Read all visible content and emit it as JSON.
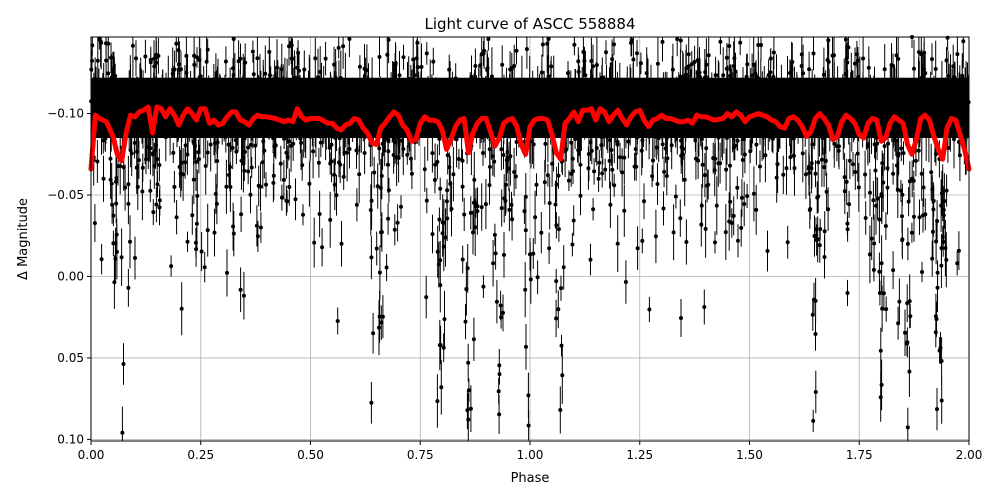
{
  "chart_data": {
    "type": "scatter",
    "title": "Light curve of ASCC 558884",
    "xlabel": "Phase",
    "ylabel": "Δ Magnitude",
    "xlim": [
      0.0,
      2.0
    ],
    "ylim": [
      0.101,
      -0.147
    ],
    "y_inverted": true,
    "grid": true,
    "x_ticks": [
      0.0,
      0.25,
      0.5,
      0.75,
      1.0,
      1.25,
      1.5,
      1.75,
      2.0
    ],
    "x_tick_labels": [
      "0.00",
      "0.25",
      "0.50",
      "0.75",
      "1.00",
      "1.25",
      "1.50",
      "1.75",
      "2.00"
    ],
    "y_ticks": [
      -0.1,
      -0.05,
      0.0,
      0.05,
      0.1
    ],
    "y_tick_labels": [
      "−0.10",
      "−0.05",
      "0.00",
      "0.05",
      "0.10"
    ],
    "series": [
      {
        "name": "observations",
        "kind": "errorbar-scatter",
        "color": "#000000",
        "description": "Dense phase-folded photometry with error bars; baseline around -0.10 to -0.12 mag with scatter to +0.10, recurring dips near phases 0.07, 0.65, 0.80, 0.86, 0.93, 1.00, 1.07, 1.65, 1.80, 1.86, 1.93",
        "baseline": -0.105,
        "dip_phases": [
          0.07,
          0.65,
          0.8,
          0.86,
          0.93,
          1.0,
          1.07,
          1.65,
          1.8,
          1.86,
          1.93
        ]
      },
      {
        "name": "model",
        "kind": "line",
        "color": "#ff0000",
        "x": [
          0.0,
          0.01,
          0.02,
          0.035,
          0.05,
          0.06,
          0.07,
          0.08,
          0.09,
          0.1,
          0.11,
          0.12,
          0.13,
          0.14,
          0.15,
          0.16,
          0.17,
          0.18,
          0.19,
          0.2,
          0.21,
          0.22,
          0.23,
          0.24,
          0.25,
          0.26,
          0.27,
          0.28,
          0.29,
          0.3,
          0.31,
          0.32,
          0.33,
          0.34,
          0.35,
          0.36,
          0.37,
          0.38,
          0.39,
          0.4,
          0.42,
          0.44,
          0.45,
          0.46,
          0.47,
          0.48,
          0.49,
          0.5,
          0.52,
          0.54,
          0.55,
          0.56,
          0.57,
          0.58,
          0.59,
          0.6,
          0.61,
          0.62,
          0.63,
          0.64,
          0.65,
          0.66,
          0.67,
          0.68,
          0.69,
          0.7,
          0.71,
          0.72,
          0.73,
          0.74,
          0.75,
          0.76,
          0.77,
          0.78,
          0.79,
          0.8,
          0.81,
          0.82,
          0.83,
          0.84,
          0.85,
          0.86,
          0.87,
          0.88,
          0.89,
          0.9,
          0.91,
          0.92,
          0.93,
          0.94,
          0.95,
          0.96,
          0.97,
          0.98,
          0.99,
          1.0,
          1.01,
          1.02,
          1.03,
          1.04,
          1.05,
          1.06,
          1.07,
          1.08,
          1.09,
          1.1,
          1.11,
          1.12,
          1.13,
          1.14,
          1.15,
          1.16,
          1.17,
          1.18,
          1.19,
          1.2,
          1.21,
          1.22,
          1.23,
          1.24,
          1.25,
          1.26,
          1.27,
          1.28,
          1.29,
          1.3,
          1.31,
          1.32,
          1.33,
          1.34,
          1.35,
          1.36,
          1.37,
          1.38,
          1.39,
          1.4,
          1.42,
          1.44,
          1.45,
          1.46,
          1.47,
          1.48,
          1.49,
          1.5,
          1.52,
          1.54,
          1.55,
          1.56,
          1.57,
          1.58,
          1.59,
          1.6,
          1.61,
          1.62,
          1.63,
          1.64,
          1.65,
          1.66,
          1.67,
          1.68,
          1.69,
          1.7,
          1.71,
          1.72,
          1.73,
          1.74,
          1.75,
          1.76,
          1.77,
          1.78,
          1.79,
          1.8,
          1.81,
          1.82,
          1.83,
          1.84,
          1.85,
          1.86,
          1.87,
          1.88,
          1.89,
          1.9,
          1.91,
          1.92,
          1.93,
          1.94,
          1.95,
          1.96,
          1.97,
          1.98,
          1.99,
          2.0
        ],
        "y": [
          -0.066,
          -0.099,
          -0.097,
          -0.095,
          -0.086,
          -0.075,
          -0.071,
          -0.088,
          -0.099,
          -0.098,
          -0.101,
          -0.102,
          -0.104,
          -0.088,
          -0.104,
          -0.103,
          -0.098,
          -0.103,
          -0.099,
          -0.093,
          -0.099,
          -0.103,
          -0.1,
          -0.096,
          -0.103,
          -0.103,
          -0.094,
          -0.096,
          -0.093,
          -0.094,
          -0.098,
          -0.101,
          -0.101,
          -0.096,
          -0.095,
          -0.093,
          -0.097,
          -0.099,
          -0.098,
          -0.098,
          -0.097,
          -0.095,
          -0.096,
          -0.095,
          -0.103,
          -0.098,
          -0.096,
          -0.097,
          -0.097,
          -0.094,
          -0.094,
          -0.091,
          -0.09,
          -0.093,
          -0.094,
          -0.097,
          -0.096,
          -0.091,
          -0.088,
          -0.082,
          -0.081,
          -0.091,
          -0.094,
          -0.098,
          -0.101,
          -0.099,
          -0.093,
          -0.09,
          -0.083,
          -0.084,
          -0.094,
          -0.098,
          -0.096,
          -0.096,
          -0.095,
          -0.09,
          -0.078,
          -0.084,
          -0.092,
          -0.096,
          -0.097,
          -0.076,
          -0.088,
          -0.094,
          -0.097,
          -0.097,
          -0.089,
          -0.08,
          -0.085,
          -0.094,
          -0.096,
          -0.097,
          -0.092,
          -0.081,
          -0.075,
          -0.092,
          -0.096,
          -0.097,
          -0.097,
          -0.096,
          -0.087,
          -0.076,
          -0.072,
          -0.094,
          -0.097,
          -0.101,
          -0.095,
          -0.102,
          -0.102,
          -0.103,
          -0.096,
          -0.103,
          -0.101,
          -0.095,
          -0.099,
          -0.102,
          -0.097,
          -0.093,
          -0.098,
          -0.101,
          -0.102,
          -0.096,
          -0.092,
          -0.096,
          -0.097,
          -0.099,
          -0.097,
          -0.097,
          -0.096,
          -0.095,
          -0.095,
          -0.096,
          -0.094,
          -0.099,
          -0.098,
          -0.098,
          -0.096,
          -0.097,
          -0.1,
          -0.098,
          -0.101,
          -0.099,
          -0.095,
          -0.098,
          -0.1,
          -0.098,
          -0.096,
          -0.095,
          -0.092,
          -0.091,
          -0.097,
          -0.098,
          -0.096,
          -0.092,
          -0.086,
          -0.089,
          -0.097,
          -0.1,
          -0.097,
          -0.093,
          -0.084,
          -0.086,
          -0.095,
          -0.099,
          -0.097,
          -0.094,
          -0.087,
          -0.085,
          -0.094,
          -0.097,
          -0.096,
          -0.083,
          -0.085,
          -0.094,
          -0.098,
          -0.096,
          -0.094,
          -0.081,
          -0.075,
          -0.084,
          -0.097,
          -0.099,
          -0.096,
          -0.086,
          -0.078,
          -0.072,
          -0.091,
          -0.097,
          -0.096,
          -0.087,
          -0.078,
          -0.066
        ]
      }
    ]
  }
}
